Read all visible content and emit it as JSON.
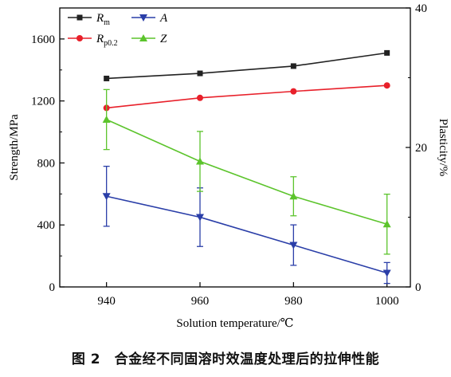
{
  "chart_data": {
    "type": "line",
    "x": [
      940,
      960,
      980,
      1000
    ],
    "xlabel": "Solution temperature/℃",
    "x_ticks": [
      "940",
      "960",
      "980",
      "1000"
    ],
    "xlim": [
      930,
      1005
    ],
    "ylabel_left": "Strength/MPa",
    "ylim_left": [
      0,
      1800
    ],
    "y_ticks_left": [
      "0",
      "400",
      "800",
      "1200",
      "1600"
    ],
    "ylabel_right": "Plasticity/%",
    "ylim_right": [
      0,
      40
    ],
    "y_ticks_right": [
      "0",
      "20",
      "40"
    ],
    "grid": false,
    "legend_placement": "top-left",
    "series": [
      {
        "name": "Rm",
        "name_main": "R",
        "name_sub": "m",
        "axis": "left",
        "color": "#222222",
        "marker": "square",
        "values": [
          1345,
          1378,
          1425,
          1510
        ]
      },
      {
        "name": "Rp0.2",
        "name_main": "R",
        "name_sub": "p0.2",
        "axis": "left",
        "color": "#e8202a",
        "marker": "circle",
        "values": [
          1155,
          1220,
          1262,
          1300
        ]
      },
      {
        "name": "A",
        "name_main": "A",
        "name_sub": "",
        "axis": "right",
        "color": "#2a3ea8",
        "marker": "triangle-down",
        "values": [
          13,
          10,
          6,
          2
        ],
        "errors": [
          4.3,
          4.2,
          2.9,
          1.5
        ]
      },
      {
        "name": "Z",
        "name_main": "Z",
        "name_sub": "",
        "axis": "right",
        "color": "#5cc42c",
        "marker": "triangle-up",
        "values": [
          24,
          18,
          13,
          9
        ],
        "errors": [
          4.3,
          4.3,
          2.8,
          4.3
        ]
      }
    ]
  },
  "caption": "图 2　合金经不同固溶时效温度处理后的拉伸性能"
}
